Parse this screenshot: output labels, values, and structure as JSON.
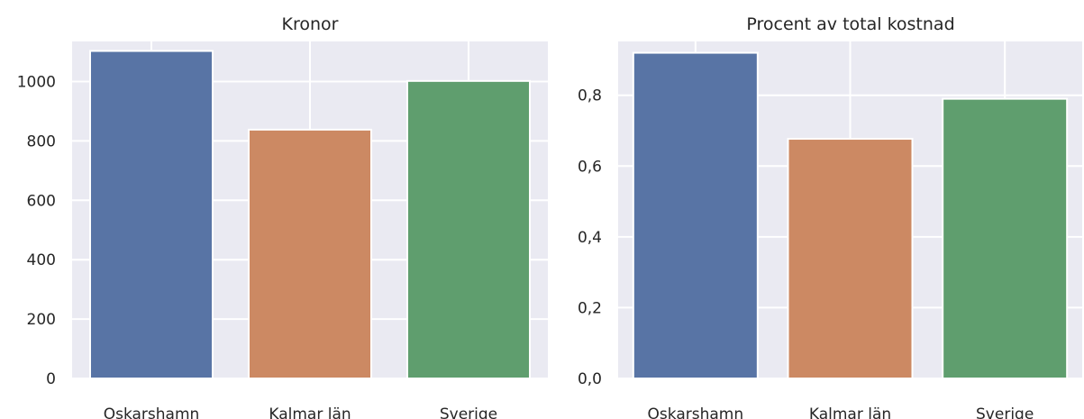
{
  "chart_data": [
    {
      "type": "bar",
      "title": "Kronor",
      "categories": [
        "Oskarshamn",
        "Kalmar län",
        "Sverige"
      ],
      "values": [
        1103,
        838,
        1002
      ],
      "ylim": [
        0,
        1135
      ],
      "yticks": [
        "0",
        "200",
        "400",
        "600",
        "800",
        "1000"
      ],
      "ytick_values": [
        0,
        200,
        400,
        600,
        800,
        1000
      ],
      "xlabel": "",
      "ylabel": "",
      "grid": true,
      "colors": [
        "#5874a5",
        "#cc8963",
        "#5f9e6e"
      ]
    },
    {
      "type": "bar",
      "title": "Procent av total kostnad",
      "categories": [
        "Oskarshamn",
        "Kalmar län",
        "Sverige"
      ],
      "values": [
        0.92,
        0.677,
        0.79
      ],
      "ylim": [
        0,
        0.952
      ],
      "yticks": [
        "0,0",
        "0,2",
        "0,4",
        "0,6",
        "0,8"
      ],
      "ytick_values": [
        0,
        0.2,
        0.4,
        0.6,
        0.8
      ],
      "xlabel": "",
      "ylabel": "",
      "grid": true,
      "colors": [
        "#5874a5",
        "#cc8963",
        "#5f9e6e"
      ]
    }
  ]
}
